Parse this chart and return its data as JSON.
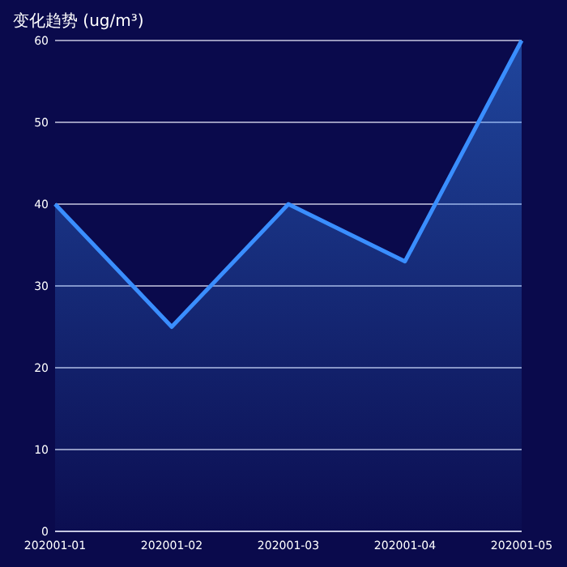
{
  "chart_data": {
    "type": "area",
    "ylabel": "变化趋势 (ug/m³)",
    "categories": [
      "202001-01",
      "202001-02",
      "202001-03",
      "202001-04",
      "202001-05"
    ],
    "series": [
      {
        "color": "#3a8eff",
        "values": [
          40,
          25,
          40,
          33,
          60
        ]
      }
    ],
    "ylim": [
      0,
      60
    ],
    "yticks": [
      0,
      10,
      20,
      30,
      40,
      50,
      60
    ],
    "grid": "y"
  }
}
